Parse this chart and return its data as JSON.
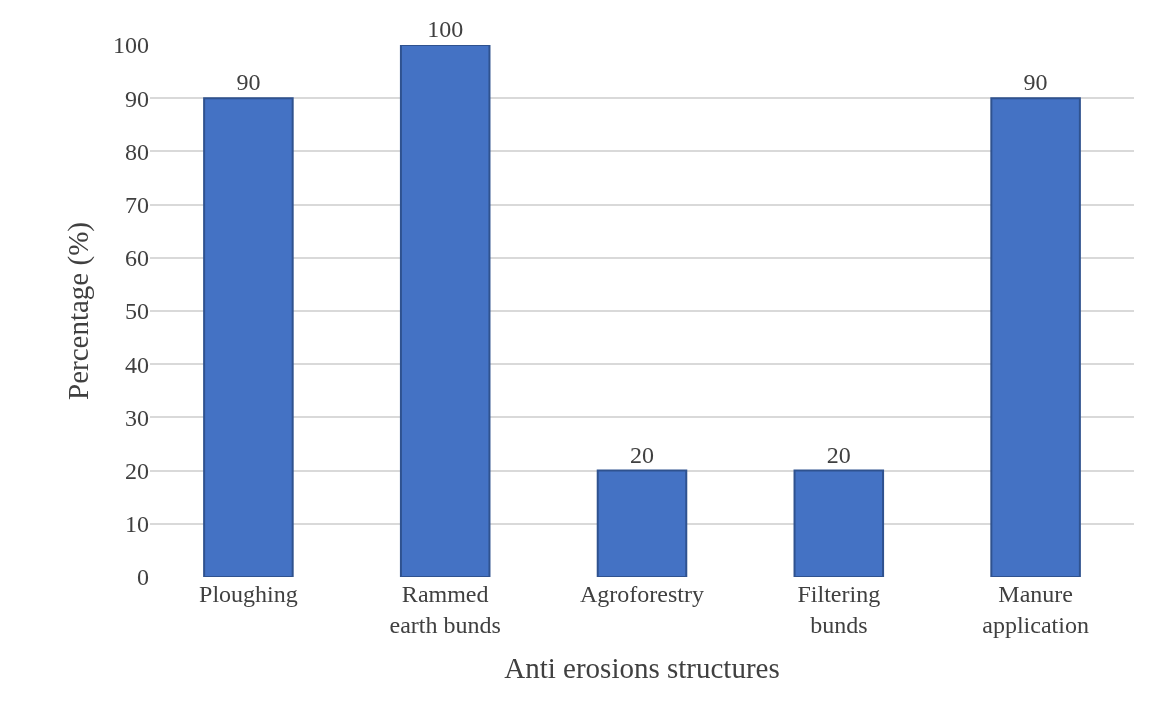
{
  "chart_data": {
    "type": "bar",
    "xlabel": "Anti erosions structures",
    "ylabel": "Percentage (%)",
    "categories": [
      "Ploughing",
      "Rammed\nearth bunds",
      "Agroforestry",
      "Filtering\nbunds",
      "Manure\napplication"
    ],
    "values": [
      90,
      100,
      20,
      20,
      90
    ],
    "color": "#4472c4",
    "ylim": [
      0,
      100
    ],
    "yticks": [
      0,
      10,
      20,
      30,
      40,
      50,
      60,
      70,
      80,
      90,
      100
    ],
    "grid": "y",
    "data_labels": true
  }
}
